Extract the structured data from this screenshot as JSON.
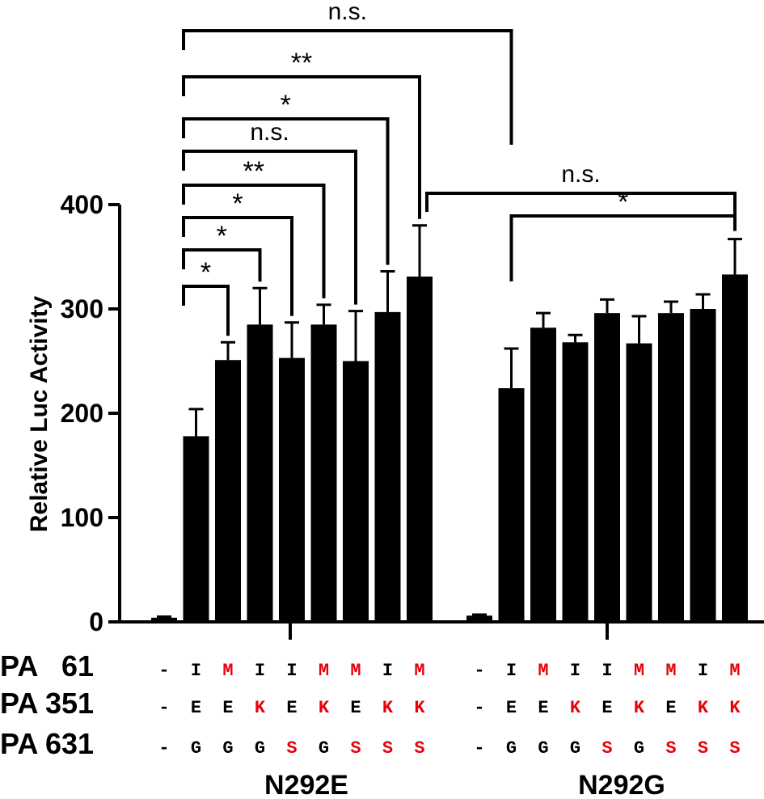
{
  "chart_data": {
    "type": "bar",
    "title": "",
    "xlabel": "",
    "ylabel": "Relative Luc Activity",
    "ylim": [
      0,
      400
    ],
    "yticks": [
      0,
      100,
      200,
      300,
      400
    ],
    "groups": [
      {
        "name": "N292E",
        "bars": [
          {
            "pa61": "-",
            "pa351": "-",
            "pa631": "-",
            "value": 4,
            "error": 1
          },
          {
            "pa61": "I",
            "pa351": "E",
            "pa631": "G",
            "value": 178,
            "error": 26
          },
          {
            "pa61": "M",
            "pa351": "E",
            "pa631": "G",
            "value": 251,
            "error": 17
          },
          {
            "pa61": "I",
            "pa351": "K",
            "pa631": "G",
            "value": 285,
            "error": 35
          },
          {
            "pa61": "I",
            "pa351": "E",
            "pa631": "S",
            "value": 253,
            "error": 34
          },
          {
            "pa61": "M",
            "pa351": "K",
            "pa631": "G",
            "value": 285,
            "error": 19
          },
          {
            "pa61": "M",
            "pa351": "E",
            "pa631": "S",
            "value": 250,
            "error": 48
          },
          {
            "pa61": "I",
            "pa351": "K",
            "pa631": "S",
            "value": 297,
            "error": 39
          },
          {
            "pa61": "M",
            "pa351": "K",
            "pa631": "S",
            "value": 331,
            "error": 49
          }
        ]
      },
      {
        "name": "N292G",
        "bars": [
          {
            "pa61": "-",
            "pa351": "-",
            "pa631": "-",
            "value": 6,
            "error": 1
          },
          {
            "pa61": "I",
            "pa351": "E",
            "pa631": "G",
            "value": 224,
            "error": 38
          },
          {
            "pa61": "M",
            "pa351": "E",
            "pa631": "G",
            "value": 282,
            "error": 14
          },
          {
            "pa61": "I",
            "pa351": "K",
            "pa631": "G",
            "value": 268,
            "error": 7
          },
          {
            "pa61": "I",
            "pa351": "E",
            "pa631": "S",
            "value": 296,
            "error": 13
          },
          {
            "pa61": "M",
            "pa351": "K",
            "pa631": "G",
            "value": 267,
            "error": 26
          },
          {
            "pa61": "M",
            "pa351": "E",
            "pa631": "S",
            "value": 296,
            "error": 11
          },
          {
            "pa61": "I",
            "pa351": "K",
            "pa631": "S",
            "value": 300,
            "error": 14
          },
          {
            "pa61": "M",
            "pa351": "K",
            "pa631": "S",
            "value": 333,
            "error": 34
          }
        ]
      }
    ],
    "row_labels": [
      "PA   61",
      "PA 351",
      "PA 631"
    ],
    "row_keys": [
      "pa61",
      "pa351",
      "pa631"
    ],
    "mutant_residues": [
      "M",
      "K",
      "S"
    ],
    "significance": [
      {
        "group": 0,
        "from": 1,
        "to": 2,
        "label": "*"
      },
      {
        "group": 0,
        "from": 1,
        "to": 3,
        "label": "*"
      },
      {
        "group": 0,
        "from": 1,
        "to": 4,
        "label": "*"
      },
      {
        "group": 0,
        "from": 1,
        "to": 5,
        "label": "**"
      },
      {
        "group": 0,
        "from": 1,
        "to": 6,
        "label": "n.s."
      },
      {
        "group": 0,
        "from": 1,
        "to": 7,
        "label": "*"
      },
      {
        "group": 0,
        "from": 1,
        "to": 8,
        "label": "**"
      },
      {
        "group": "cross",
        "from": [
          0,
          1
        ],
        "to": [
          1,
          1
        ],
        "label": "n.s."
      },
      {
        "group": "cross",
        "from": [
          0,
          8
        ],
        "to": [
          1,
          8
        ],
        "label": "n.s."
      },
      {
        "group": 1,
        "from": 1,
        "to": 8,
        "label": "*"
      }
    ],
    "colors": {
      "bar": "#000000",
      "wildtype_residue": "#000000",
      "mutant_residue": "#e8000b"
    }
  }
}
